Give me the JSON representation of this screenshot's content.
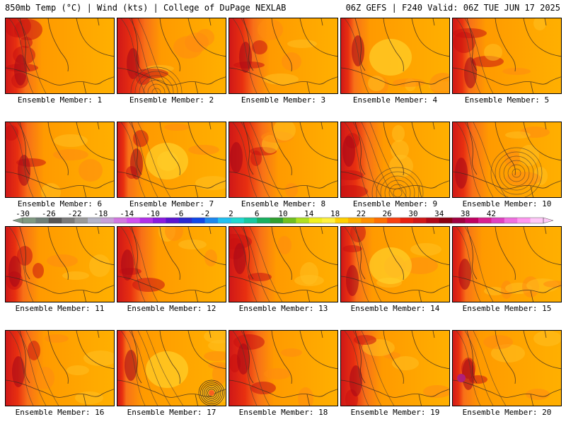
{
  "header": {
    "left": "850mb Temp (°C) | Wind (kts) | College of DuPage NEXLAB",
    "right": "06Z GEFS | F240 Valid: 06Z TUE JUN 17 2025"
  },
  "members": [
    {
      "label": "Ensemble Member: 1"
    },
    {
      "label": "Ensemble Member: 2"
    },
    {
      "label": "Ensemble Member: 3"
    },
    {
      "label": "Ensemble Member: 4"
    },
    {
      "label": "Ensemble Member: 5"
    },
    {
      "label": "Ensemble Member: 6"
    },
    {
      "label": "Ensemble Member: 7"
    },
    {
      "label": "Ensemble Member: 8"
    },
    {
      "label": "Ensemble Member: 9"
    },
    {
      "label": "Ensemble Member: 10"
    },
    {
      "label": "Ensemble Member: 11"
    },
    {
      "label": "Ensemble Member: 12"
    },
    {
      "label": "Ensemble Member: 13"
    },
    {
      "label": "Ensemble Member: 14"
    },
    {
      "label": "Ensemble Member: 15"
    },
    {
      "label": "Ensemble Member: 16"
    },
    {
      "label": "Ensemble Member: 17"
    },
    {
      "label": "Ensemble Member: 18"
    },
    {
      "label": "Ensemble Member: 19"
    },
    {
      "label": "Ensemble Member: 20"
    }
  ],
  "colorbar": {
    "ticks": [
      "-30",
      "-26",
      "-22",
      "-18",
      "-14",
      "-10",
      "-6",
      "-2",
      "2",
      "6",
      "10",
      "14",
      "18",
      "22",
      "26",
      "30",
      "34",
      "38",
      "42"
    ],
    "colors": [
      "#7f9a82",
      "#6f7f78",
      "#565656",
      "#7a7a7a",
      "#9a9a9a",
      "#b4b4c8",
      "#c6a0d8",
      "#d178e0",
      "#d050f0",
      "#b030e8",
      "#8a1ae0",
      "#5a14d0",
      "#2a2ad0",
      "#1048e8",
      "#1c88f0",
      "#22c0f0",
      "#20d8d0",
      "#18c8a0",
      "#18b060",
      "#30a030",
      "#70c020",
      "#b0e020",
      "#f0f020",
      "#fff040",
      "#ffd000",
      "#ffb000",
      "#ff9000",
      "#ff7000",
      "#f84010",
      "#e82010",
      "#d01818",
      "#b00818",
      "#8c0010",
      "#a00040",
      "#c00060",
      "#d82090",
      "#e040c0",
      "#f070e0",
      "#ff98f0",
      "#ffc8f8"
    ]
  }
}
